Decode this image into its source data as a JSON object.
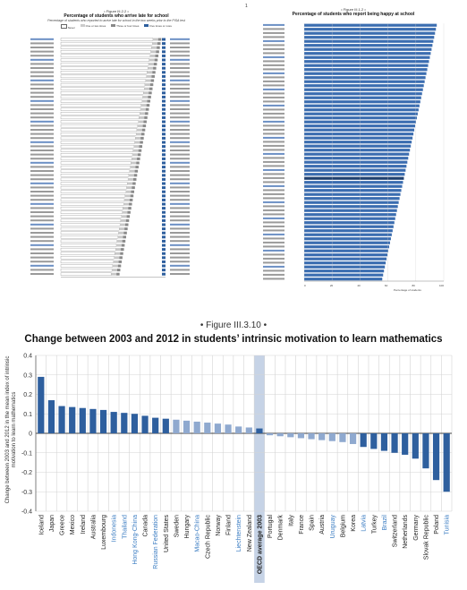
{
  "top_left": {
    "fig_label": "• Figure III.2.2 •",
    "title": "Percentage of students who arrive late for school",
    "subtitle": "Percentage of students who reported to arrive late for school in the two weeks prior to the PISA test",
    "legend": [
      "Never",
      "One or two times",
      "Three or four times",
      "Five times or more"
    ]
  },
  "top_right": {
    "fig_label": "• Figure III.1.2 •",
    "title": "Percentage of students who report being happy at school",
    "xlabel": "Percentage of students",
    "xticks": [
      "0",
      "20",
      "40",
      "60",
      "80",
      "100"
    ]
  },
  "mini_marker": "1",
  "main_chart": {
    "fig_label": "• Figure III.3.10 •",
    "title": "Change between 2003 and 2012 in students’ intrinsic motivation to learn mathematics",
    "ylabel": "Change between 2003 and 2012 in the mean index of intrinsic motivation to learn mathematics",
    "colors": {
      "bar": "#2e5f9e",
      "bar_light": "#8fa9cf",
      "highlight_bg": "#c6d3e6",
      "partner_label": "#3a7cc2"
    }
  },
  "chart_data": {
    "type": "bar",
    "title": "Change between 2003 and 2012 in students’ intrinsic motivation to learn mathematics",
    "ylabel": "Change between 2003 and 2012 in the mean index of intrinsic motivation to learn mathematics",
    "ylim": [
      -0.4,
      0.4
    ],
    "yticks": [
      "0.4",
      "0.3",
      "0.2",
      "0.1",
      "0",
      "-0.1",
      "-0.2",
      "-0.3",
      "-0.4"
    ],
    "categories": [
      "Iceland",
      "Japan",
      "Greece",
      "Mexico",
      "Ireland",
      "Australia",
      "Luxembourg",
      "Indonesia",
      "Thailand",
      "Hong Kong-China",
      "Canada",
      "Russian Federation",
      "United States",
      "Sweden",
      "Hungary",
      "Macao-China",
      "Czech Republic",
      "Norway",
      "Finland",
      "Liechtenstein",
      "New Zealand",
      "OECD average 2003",
      "Portugal",
      "Denmark",
      "Italy",
      "France",
      "Spain",
      "Austria",
      "Uruguay",
      "Belgium",
      "Korea",
      "Latvia",
      "Turkey",
      "Brazil",
      "Switzerland",
      "Netherlands",
      "Germany",
      "Slovak Republic",
      "Poland",
      "Tunisia"
    ],
    "values": [
      0.29,
      0.17,
      0.14,
      0.135,
      0.13,
      0.125,
      0.12,
      0.11,
      0.105,
      0.1,
      0.09,
      0.08,
      0.075,
      0.07,
      0.065,
      0.06,
      0.055,
      0.05,
      0.045,
      0.035,
      0.03,
      0.025,
      -0.01,
      -0.015,
      -0.02,
      -0.025,
      -0.03,
      -0.035,
      -0.04,
      -0.045,
      -0.055,
      -0.07,
      -0.08,
      -0.09,
      -0.1,
      -0.11,
      -0.13,
      -0.18,
      -0.24,
      -0.3
    ],
    "partner": [
      "Indonesia",
      "Thailand",
      "Hong Kong-China",
      "Russian Federation",
      "Macao-China",
      "Liechtenstein",
      "Uruguay",
      "Latvia",
      "Brazil",
      "Tunisia"
    ],
    "light_bars": [
      "Sweden",
      "Hungary",
      "Macao-China",
      "Czech Republic",
      "Norway",
      "Finland",
      "Liechtenstein",
      "New Zealand",
      "Portugal",
      "Denmark",
      "Italy",
      "France",
      "Spain",
      "Austria",
      "Uruguay",
      "Belgium",
      "Korea"
    ],
    "highlight": "OECD average 2003",
    "grid": true
  }
}
